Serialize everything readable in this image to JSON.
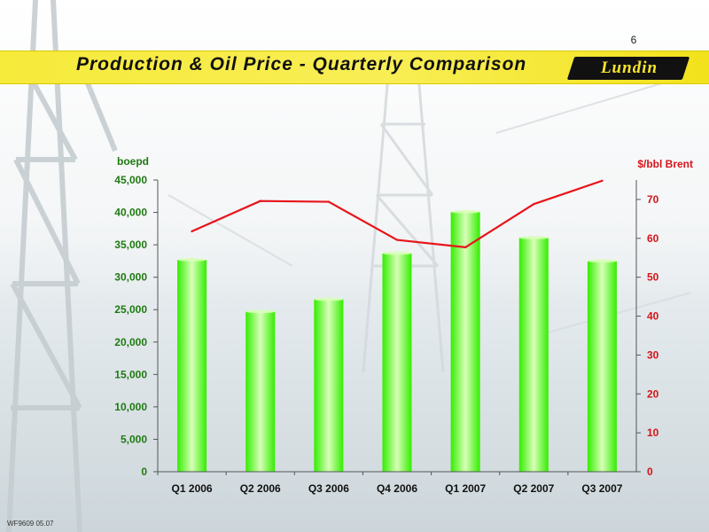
{
  "page_number": "6",
  "title": "Production & Oil Price - Quarterly Comparison",
  "logo_text": "Lundin",
  "footer_code": "WF9609 05.07",
  "colors": {
    "bar": "#33ee00",
    "bar_highlight": "#d8ffb8",
    "line": "#e8141a",
    "left_axis": "#1f7a12",
    "right_axis": "#d4141a"
  },
  "chart_data": {
    "type": "bar",
    "categories": [
      "Q1 2006",
      "Q2 2006",
      "Q3 2006",
      "Q4 2006",
      "Q1 2007",
      "Q2 2007",
      "Q3 2007"
    ],
    "series": [
      {
        "type": "bar",
        "axis": "left",
        "values": [
          32700,
          24700,
          26600,
          33700,
          40100,
          36100,
          32500
        ]
      },
      {
        "type": "line",
        "axis": "right",
        "values": [
          61.8,
          69.6,
          69.4,
          59.6,
          57.7,
          68.8,
          74.8
        ]
      }
    ],
    "y_left": {
      "label": "boepd",
      "min": 0,
      "max": 45000,
      "ticks": [
        "0",
        "5,000",
        "10,000",
        "15,000",
        "20,000",
        "25,000",
        "30,000",
        "35,000",
        "40,000",
        "45,000"
      ]
    },
    "y_right": {
      "label": "$/bbl Brent",
      "min": 0,
      "max": 75,
      "ticks": [
        "0",
        "10",
        "20",
        "30",
        "40",
        "50",
        "60",
        "70"
      ]
    },
    "grid": false,
    "legend": "none"
  }
}
